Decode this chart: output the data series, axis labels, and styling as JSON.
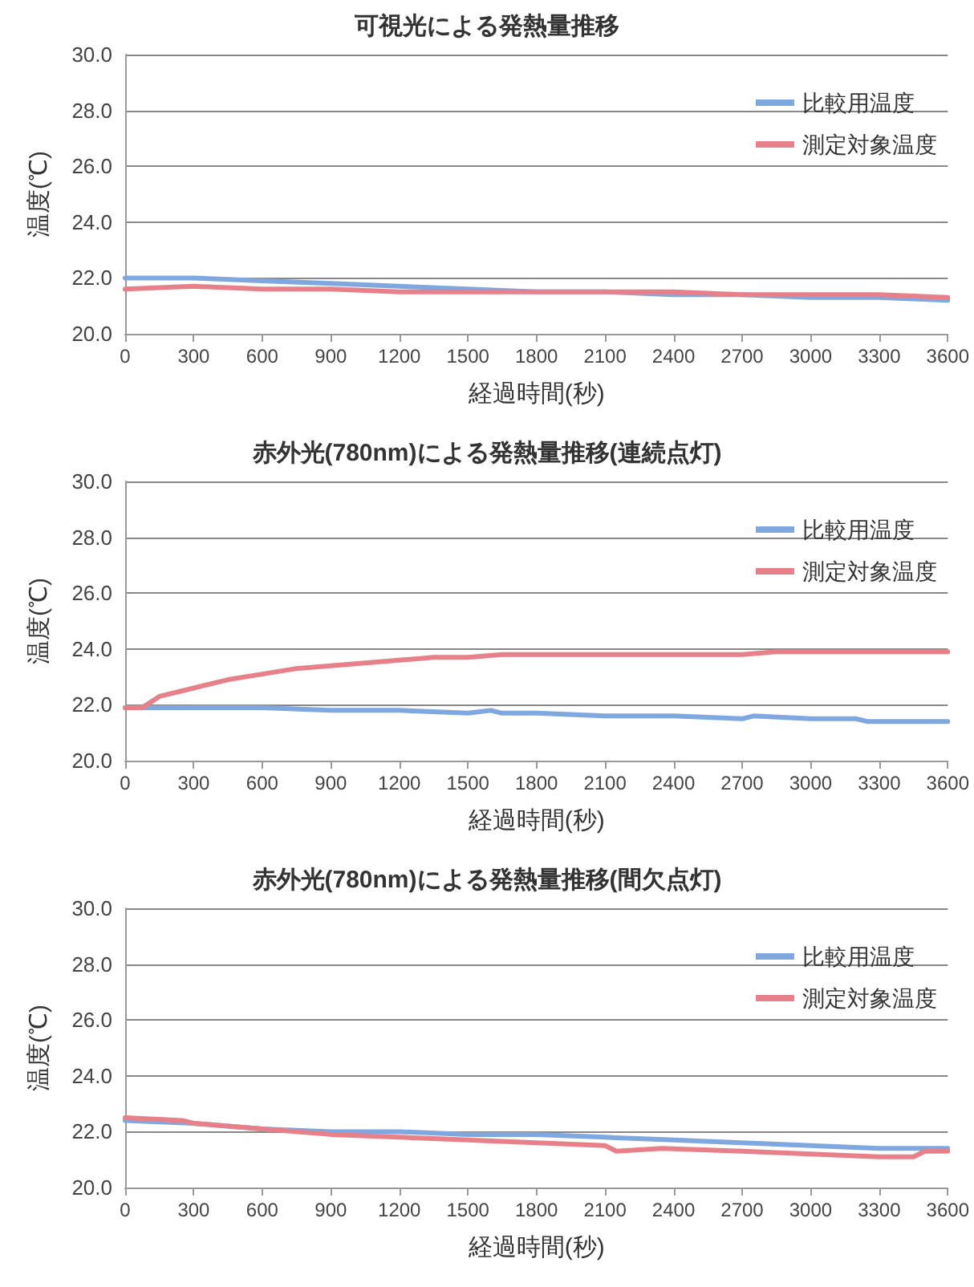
{
  "chart_data": [
    {
      "type": "line",
      "title": "可視光による発熱量推移",
      "xlabel": "経過時間(秒)",
      "ylabel": "温度(℃)",
      "xlim": [
        0,
        3600
      ],
      "xticks": [
        0,
        300,
        600,
        900,
        1200,
        1500,
        1800,
        2100,
        2400,
        2700,
        3000,
        3300,
        3600
      ],
      "ylim": [
        20,
        30
      ],
      "yticks": [
        {
          "value": 20,
          "label": "20.0"
        },
        {
          "value": 22,
          "label": "22.0"
        },
        {
          "value": 24,
          "label": "24.0"
        },
        {
          "value": 26,
          "label": "26.0"
        },
        {
          "value": 28,
          "label": "28.0"
        },
        {
          "value": 30,
          "label": "30.0"
        }
      ],
      "grid": "y",
      "legend": "top right",
      "marker": "none",
      "line_style": "solid",
      "series": [
        {
          "name": "比較用温度",
          "color": "#7fa7e0",
          "x": [
            0,
            300,
            600,
            900,
            1200,
            1500,
            1800,
            2100,
            2400,
            2700,
            3000,
            3300,
            3600
          ],
          "values": [
            22.0,
            22.0,
            21.9,
            21.8,
            21.7,
            21.6,
            21.5,
            21.5,
            21.4,
            21.4,
            21.3,
            21.3,
            21.2
          ]
        },
        {
          "name": "測定対象温度",
          "color": "#e8808a",
          "x": [
            0,
            300,
            600,
            900,
            1200,
            1500,
            1800,
            2100,
            2400,
            2700,
            3000,
            3300,
            3600
          ],
          "values": [
            21.6,
            21.7,
            21.6,
            21.6,
            21.5,
            21.5,
            21.5,
            21.5,
            21.5,
            21.4,
            21.4,
            21.4,
            21.3
          ]
        }
      ]
    },
    {
      "type": "line",
      "title": "赤外光(780nm)による発熱量推移(連続点灯)",
      "xlabel": "経過時間(秒)",
      "ylabel": "温度(℃)",
      "xlim": [
        0,
        3600
      ],
      "xticks": [
        0,
        300,
        600,
        900,
        1200,
        1500,
        1800,
        2100,
        2400,
        2700,
        3000,
        3300,
        3600
      ],
      "ylim": [
        20,
        30
      ],
      "yticks": [
        {
          "value": 20,
          "label": "20.0"
        },
        {
          "value": 22,
          "label": "22.0"
        },
        {
          "value": 24,
          "label": "24.0"
        },
        {
          "value": 26,
          "label": "26.0"
        },
        {
          "value": 28,
          "label": "28.0"
        },
        {
          "value": 30,
          "label": "30.0"
        }
      ],
      "grid": "y",
      "legend": "top right",
      "marker": "none",
      "line_style": "solid",
      "series": [
        {
          "name": "比較用温度",
          "color": "#7fa7e0",
          "x": [
            0,
            300,
            600,
            900,
            1200,
            1500,
            1600,
            1650,
            1800,
            2100,
            2400,
            2700,
            2750,
            3000,
            3200,
            3250,
            3600
          ],
          "values": [
            21.9,
            21.9,
            21.9,
            21.8,
            21.8,
            21.7,
            21.8,
            21.7,
            21.7,
            21.6,
            21.6,
            21.5,
            21.6,
            21.5,
            21.5,
            21.4,
            21.4
          ]
        },
        {
          "name": "測定対象温度",
          "color": "#e8808a",
          "x": [
            0,
            75,
            150,
            300,
            450,
            600,
            750,
            900,
            1050,
            1200,
            1350,
            1500,
            1650,
            1800,
            2100,
            2400,
            2700,
            2850,
            3000,
            3300,
            3600
          ],
          "values": [
            21.9,
            21.9,
            22.3,
            22.6,
            22.9,
            23.1,
            23.3,
            23.4,
            23.5,
            23.6,
            23.7,
            23.7,
            23.8,
            23.8,
            23.8,
            23.8,
            23.8,
            23.9,
            23.9,
            23.9,
            23.9
          ]
        }
      ]
    },
    {
      "type": "line",
      "title": "赤外光(780nm)による発熱量推移(間欠点灯)",
      "xlabel": "経過時間(秒)",
      "ylabel": "温度(℃)",
      "xlim": [
        0,
        3600
      ],
      "xticks": [
        0,
        300,
        600,
        900,
        1200,
        1500,
        1800,
        2100,
        2400,
        2700,
        3000,
        3300,
        3600
      ],
      "ylim": [
        20,
        30
      ],
      "yticks": [
        {
          "value": 20,
          "label": "20.0"
        },
        {
          "value": 22,
          "label": "22.0"
        },
        {
          "value": 24,
          "label": "24.0"
        },
        {
          "value": 26,
          "label": "26.0"
        },
        {
          "value": 28,
          "label": "28.0"
        },
        {
          "value": 30,
          "label": "30.0"
        }
      ],
      "grid": "y",
      "legend": "top right",
      "marker": "none",
      "line_style": "solid",
      "series": [
        {
          "name": "比較用温度",
          "color": "#7fa7e0",
          "x": [
            0,
            300,
            600,
            900,
            1200,
            1500,
            1800,
            2100,
            2400,
            2700,
            3000,
            3300,
            3600
          ],
          "values": [
            22.4,
            22.3,
            22.1,
            22.0,
            22.0,
            21.9,
            21.9,
            21.8,
            21.7,
            21.6,
            21.5,
            21.4,
            21.4
          ]
        },
        {
          "name": "測定対象温度",
          "color": "#e8808a",
          "x": [
            0,
            250,
            300,
            600,
            900,
            1200,
            1500,
            1800,
            2100,
            2150,
            2350,
            2700,
            3000,
            3300,
            3450,
            3500,
            3600
          ],
          "values": [
            22.5,
            22.4,
            22.3,
            22.1,
            21.9,
            21.8,
            21.7,
            21.6,
            21.5,
            21.3,
            21.4,
            21.3,
            21.2,
            21.1,
            21.1,
            21.3,
            21.3
          ]
        }
      ]
    }
  ]
}
